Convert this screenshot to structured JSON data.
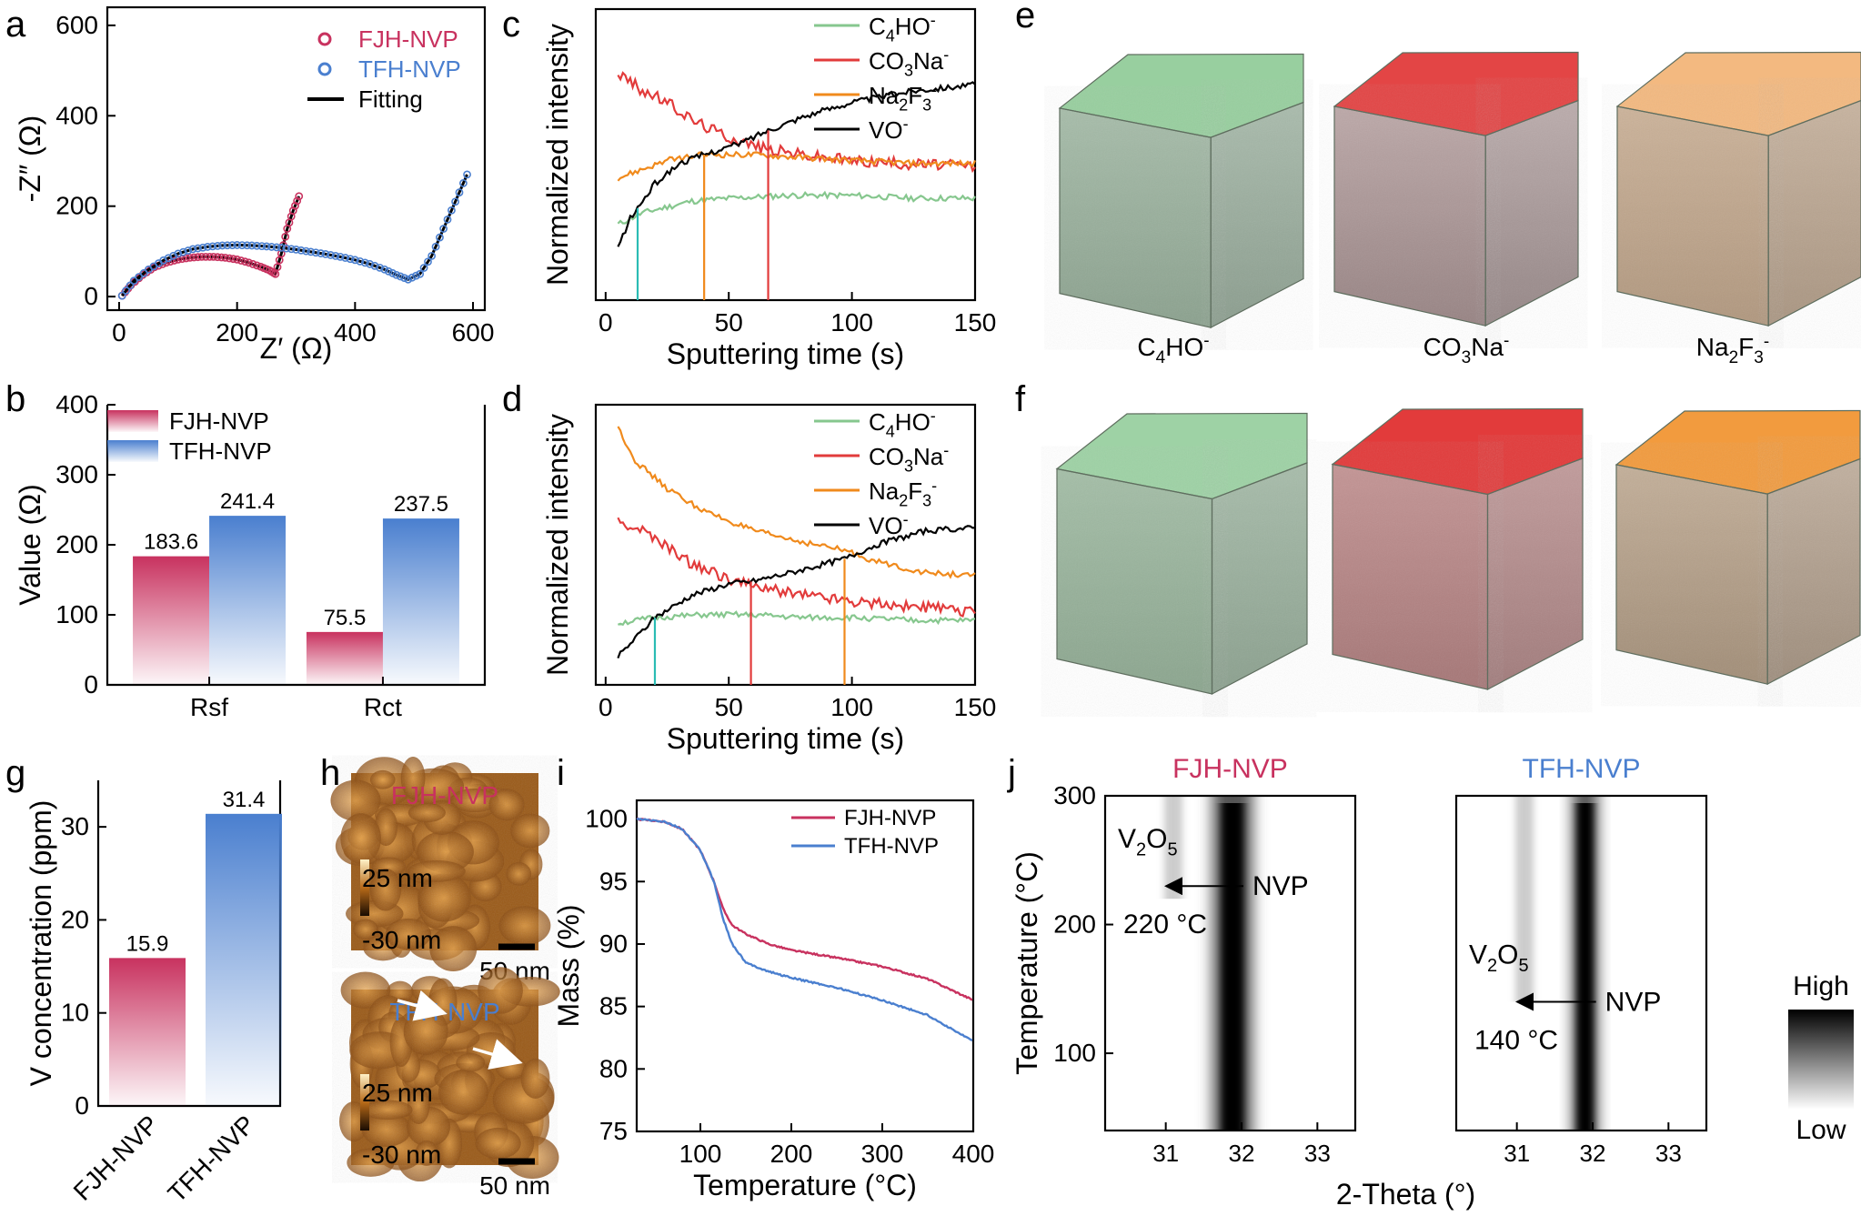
{
  "colors": {
    "fjh": "#c8325f",
    "tfh": "#4a7fcf",
    "fit": "#000000",
    "c4ho": "#86c78e",
    "co3na": "#e23b3b",
    "na2f3": "#f08a1c",
    "vo": "#000000",
    "teal_marker": "#2bbcb4"
  },
  "panels": {
    "a": "a",
    "b": "b",
    "c": "c",
    "d": "d",
    "e": "e",
    "f": "f",
    "g": "g",
    "h": "h",
    "i": "i",
    "j": "j"
  },
  "ions": {
    "c4ho": {
      "base": "C",
      "sub1": "4",
      "rest": "HO",
      "sup": "-"
    },
    "co3na": {
      "base": "CO",
      "sub1": "3",
      "rest": "Na",
      "sup": "-"
    },
    "na2f3": {
      "base": "Na",
      "sub1": "2",
      "rest": "F",
      "sub2": "3",
      "sup": "-"
    },
    "vo": {
      "base": "VO",
      "sup": "-"
    }
  },
  "cube_labels": {
    "c4ho": {
      "base": "C",
      "sub1": "4",
      "rest": "HO",
      "sup": "-"
    },
    "co3na": {
      "base": "CO",
      "sub1": "3",
      "rest": "Na",
      "sup": "-"
    },
    "na2f3": {
      "base": "Na",
      "sub1": "2",
      "rest": "F",
      "sub2": "3",
      "sup": "-"
    }
  },
  "afm": {
    "top_label": "FJH-NVP",
    "bottom_label": "TFH-NVP",
    "scale_max": "25 nm",
    "scale_min": "-30 nm",
    "scalebar": "50 nm"
  },
  "chart_data": [
    {
      "panel": "a",
      "type": "scatter",
      "xlabel": "Z′ (Ω)",
      "ylabel": "-Z″ (Ω)",
      "xlim": [
        -20,
        620
      ],
      "ylim": [
        -30,
        640
      ],
      "xticks": [
        0,
        200,
        400,
        600
      ],
      "yticks": [
        0,
        200,
        400,
        600
      ],
      "legend": [
        "FJH-NVP",
        "TFH-NVP",
        "Fitting"
      ],
      "series": [
        {
          "name": "FJH-NVP",
          "points": [
            [
              5,
              2
            ],
            [
              20,
              25
            ],
            [
              40,
              48
            ],
            [
              60,
              65
            ],
            [
              80,
              75
            ],
            [
              100,
              82
            ],
            [
              120,
              86
            ],
            [
              140,
              88
            ],
            [
              160,
              88
            ],
            [
              180,
              86
            ],
            [
              200,
              82
            ],
            [
              220,
              75
            ],
            [
              240,
              66
            ],
            [
              255,
              58
            ],
            [
              265,
              50
            ],
            [
              275,
              95
            ],
            [
              285,
              150
            ],
            [
              295,
              190
            ],
            [
              305,
              222
            ]
          ]
        },
        {
          "name": "TFH-NVP",
          "points": [
            [
              5,
              2
            ],
            [
              25,
              35
            ],
            [
              50,
              60
            ],
            [
              75,
              80
            ],
            [
              100,
              95
            ],
            [
              125,
              105
            ],
            [
              150,
              110
            ],
            [
              175,
              113
            ],
            [
              200,
              114
            ],
            [
              225,
              113
            ],
            [
              250,
              111
            ],
            [
              275,
              108
            ],
            [
              300,
              104
            ],
            [
              325,
              99
            ],
            [
              350,
              94
            ],
            [
              375,
              88
            ],
            [
              400,
              81
            ],
            [
              425,
              72
            ],
            [
              450,
              60
            ],
            [
              470,
              48
            ],
            [
              490,
              38
            ],
            [
              510,
              50
            ],
            [
              530,
              90
            ],
            [
              550,
              150
            ],
            [
              570,
              210
            ],
            [
              590,
              270
            ]
          ]
        }
      ]
    },
    {
      "panel": "b",
      "type": "bar",
      "categories": [
        "Rsf",
        "Rct"
      ],
      "series": [
        {
          "name": "FJH-NVP",
          "values": [
            183.6,
            75.5
          ],
          "labels": [
            "183.6",
            "75.5"
          ]
        },
        {
          "name": "TFH-NVP",
          "values": [
            241.4,
            237.5
          ],
          "labels": [
            "241.4",
            "237.5"
          ]
        }
      ],
      "ylabel": "Value (Ω)",
      "ylim": [
        0,
        400
      ],
      "yticks": [
        0,
        100,
        200,
        300,
        400
      ]
    },
    {
      "panel": "c",
      "type": "line",
      "xlabel": "Sputtering time (s)",
      "ylabel": "Normalized intensity",
      "xlim": [
        -4,
        150
      ],
      "xticks": [
        0,
        50,
        100,
        150
      ],
      "ylim": [
        0,
        1
      ],
      "series": [
        {
          "name": "C4HO-",
          "points": [
            [
              5,
              0.26
            ],
            [
              15,
              0.3
            ],
            [
              25,
              0.32
            ],
            [
              35,
              0.34
            ],
            [
              50,
              0.35
            ],
            [
              75,
              0.36
            ],
            [
              100,
              0.36
            ],
            [
              125,
              0.35
            ],
            [
              150,
              0.35
            ]
          ]
        },
        {
          "name": "CO3Na-",
          "points": [
            [
              5,
              0.78
            ],
            [
              15,
              0.72
            ],
            [
              25,
              0.68
            ],
            [
              35,
              0.62
            ],
            [
              50,
              0.56
            ],
            [
              65,
              0.52
            ],
            [
              80,
              0.5
            ],
            [
              100,
              0.48
            ],
            [
              120,
              0.47
            ],
            [
              150,
              0.46
            ]
          ]
        },
        {
          "name": "Na2F3-",
          "points": [
            [
              5,
              0.42
            ],
            [
              15,
              0.45
            ],
            [
              25,
              0.48
            ],
            [
              40,
              0.5
            ],
            [
              60,
              0.5
            ],
            [
              80,
              0.49
            ],
            [
              100,
              0.48
            ],
            [
              125,
              0.47
            ],
            [
              150,
              0.47
            ]
          ]
        },
        {
          "name": "VO-",
          "points": [
            [
              5,
              0.18
            ],
            [
              10,
              0.28
            ],
            [
              20,
              0.4
            ],
            [
              30,
              0.47
            ],
            [
              40,
              0.5
            ],
            [
              55,
              0.54
            ],
            [
              65,
              0.58
            ],
            [
              80,
              0.63
            ],
            [
              100,
              0.68
            ],
            [
              125,
              0.72
            ],
            [
              150,
              0.74
            ]
          ]
        }
      ],
      "markers": [
        13,
        40,
        66
      ]
    },
    {
      "panel": "d",
      "type": "line",
      "xlabel": "Sputtering time (s)",
      "ylabel": "Normalized intensity",
      "xlim": [
        -4,
        150
      ],
      "xticks": [
        0,
        50,
        100,
        150
      ],
      "ylim": [
        0,
        1
      ],
      "series": [
        {
          "name": "C4HO-",
          "points": [
            [
              5,
              0.22
            ],
            [
              20,
              0.24
            ],
            [
              40,
              0.25
            ],
            [
              60,
              0.25
            ],
            [
              80,
              0.24
            ],
            [
              100,
              0.24
            ],
            [
              125,
              0.23
            ],
            [
              150,
              0.23
            ]
          ]
        },
        {
          "name": "CO3Na-",
          "points": [
            [
              5,
              0.58
            ],
            [
              15,
              0.55
            ],
            [
              25,
              0.49
            ],
            [
              35,
              0.43
            ],
            [
              50,
              0.38
            ],
            [
              60,
              0.35
            ],
            [
              75,
              0.33
            ],
            [
              100,
              0.3
            ],
            [
              125,
              0.28
            ],
            [
              150,
              0.26
            ]
          ]
        },
        {
          "name": "Na2F3-",
          "points": [
            [
              5,
              0.92
            ],
            [
              12,
              0.8
            ],
            [
              25,
              0.7
            ],
            [
              40,
              0.62
            ],
            [
              60,
              0.55
            ],
            [
              80,
              0.51
            ],
            [
              97,
              0.48
            ],
            [
              110,
              0.44
            ],
            [
              130,
              0.4
            ],
            [
              150,
              0.39
            ]
          ]
        },
        {
          "name": "VO-",
          "points": [
            [
              5,
              0.1
            ],
            [
              20,
              0.24
            ],
            [
              35,
              0.32
            ],
            [
              50,
              0.36
            ],
            [
              60,
              0.37
            ],
            [
              75,
              0.4
            ],
            [
              97,
              0.45
            ],
            [
              110,
              0.5
            ],
            [
              130,
              0.55
            ],
            [
              150,
              0.56
            ]
          ]
        }
      ],
      "markers": [
        20,
        59,
        97
      ]
    },
    {
      "panel": "g",
      "type": "bar",
      "categories": [
        "FJH-NVP",
        "TFH-NVP"
      ],
      "values": [
        15.9,
        31.4
      ],
      "labels": [
        "15.9",
        "31.4"
      ],
      "ylabel": "V concentration (ppm)",
      "ylim": [
        0,
        35
      ],
      "yticks": [
        0,
        10,
        20,
        30
      ]
    },
    {
      "panel": "i",
      "type": "line",
      "xlabel": "Temperature (°C)",
      "ylabel": "Mass (%)",
      "xlim": [
        30,
        400
      ],
      "xticks": [
        100,
        200,
        300,
        400
      ],
      "ylim": [
        75,
        101.5
      ],
      "yticks": [
        75,
        80,
        85,
        90,
        95,
        100
      ],
      "series": [
        {
          "name": "FJH-NVP",
          "points": [
            [
              30,
              100
            ],
            [
              60,
              99.8
            ],
            [
              80,
              99.2
            ],
            [
              100,
              97.5
            ],
            [
              115,
              95
            ],
            [
              125,
              92.8
            ],
            [
              135,
              91.5
            ],
            [
              150,
              90.8
            ],
            [
              175,
              90
            ],
            [
              200,
              89.5
            ],
            [
              250,
              88.9
            ],
            [
              300,
              88.2
            ],
            [
              350,
              87.2
            ],
            [
              400,
              85.5
            ]
          ]
        },
        {
          "name": "TFH-NVP",
          "points": [
            [
              30,
              100
            ],
            [
              60,
              99.8
            ],
            [
              80,
              99.2
            ],
            [
              100,
              97.5
            ],
            [
              115,
              95
            ],
            [
              125,
              92
            ],
            [
              135,
              90
            ],
            [
              150,
              88.5
            ],
            [
              175,
              87.8
            ],
            [
              200,
              87.3
            ],
            [
              250,
              86.5
            ],
            [
              300,
              85.5
            ],
            [
              350,
              84.3
            ],
            [
              400,
              82.2
            ]
          ]
        }
      ]
    },
    {
      "panel": "j",
      "type": "heatmap",
      "xlabel": "2-Theta (°)",
      "ylabel": "Temperature (°C)",
      "xlim": [
        30.2,
        33.5
      ],
      "xticks": [
        31,
        32,
        33
      ],
      "ylim": [
        40,
        300
      ],
      "yticks": [
        100,
        200,
        300
      ],
      "maps": [
        {
          "title": "FJH-NVP",
          "phase1": {
            "base": "V",
            "sub1": "2",
            "rest": "O",
            "sub2": "5"
          },
          "phase2": "NVP",
          "onset": "220 °C",
          "onset_T": 220,
          "peak_2theta": 31.88,
          "v2o5_2theta": 31.1
        },
        {
          "title": "TFH-NVP",
          "phase1": {
            "base": "V",
            "sub1": "2",
            "rest": "O",
            "sub2": "5"
          },
          "phase2": "NVP",
          "onset": "140 °C",
          "onset_T": 140,
          "peak_2theta": 31.9,
          "v2o5_2theta": 31.1
        }
      ],
      "colorbar": {
        "high": "High",
        "low": "Low"
      }
    }
  ]
}
